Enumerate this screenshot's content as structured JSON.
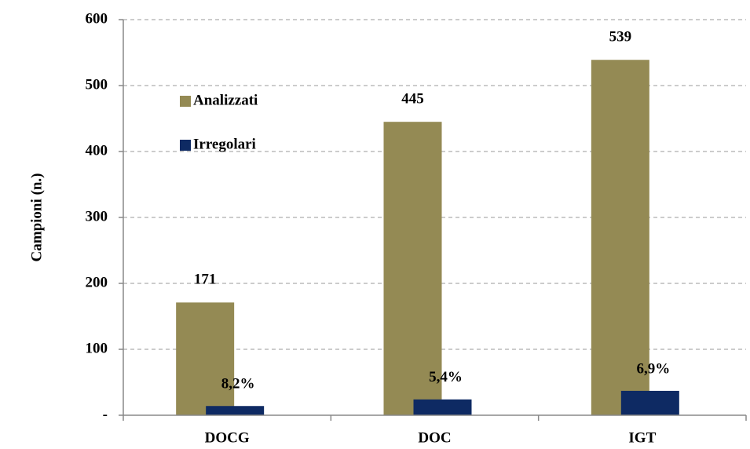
{
  "chart_data": {
    "type": "bar",
    "categories": [
      "DOCG",
      "DOC",
      "IGT"
    ],
    "series": [
      {
        "name": "Analizzati",
        "color": "#948a54",
        "values": [
          171,
          445,
          539
        ]
      },
      {
        "name": "Irregolari",
        "color": "#0e2a63",
        "values": [
          14,
          24,
          37
        ]
      }
    ],
    "annotations": [
      "8,2%",
      "5,4%",
      "6,9%"
    ],
    "y_label": "Campioni (n.)",
    "ylim": [
      0,
      600
    ],
    "yticks": [
      {
        "value": 0,
        "label": "-"
      },
      100,
      200,
      300,
      400,
      500,
      600
    ],
    "grid": true
  }
}
